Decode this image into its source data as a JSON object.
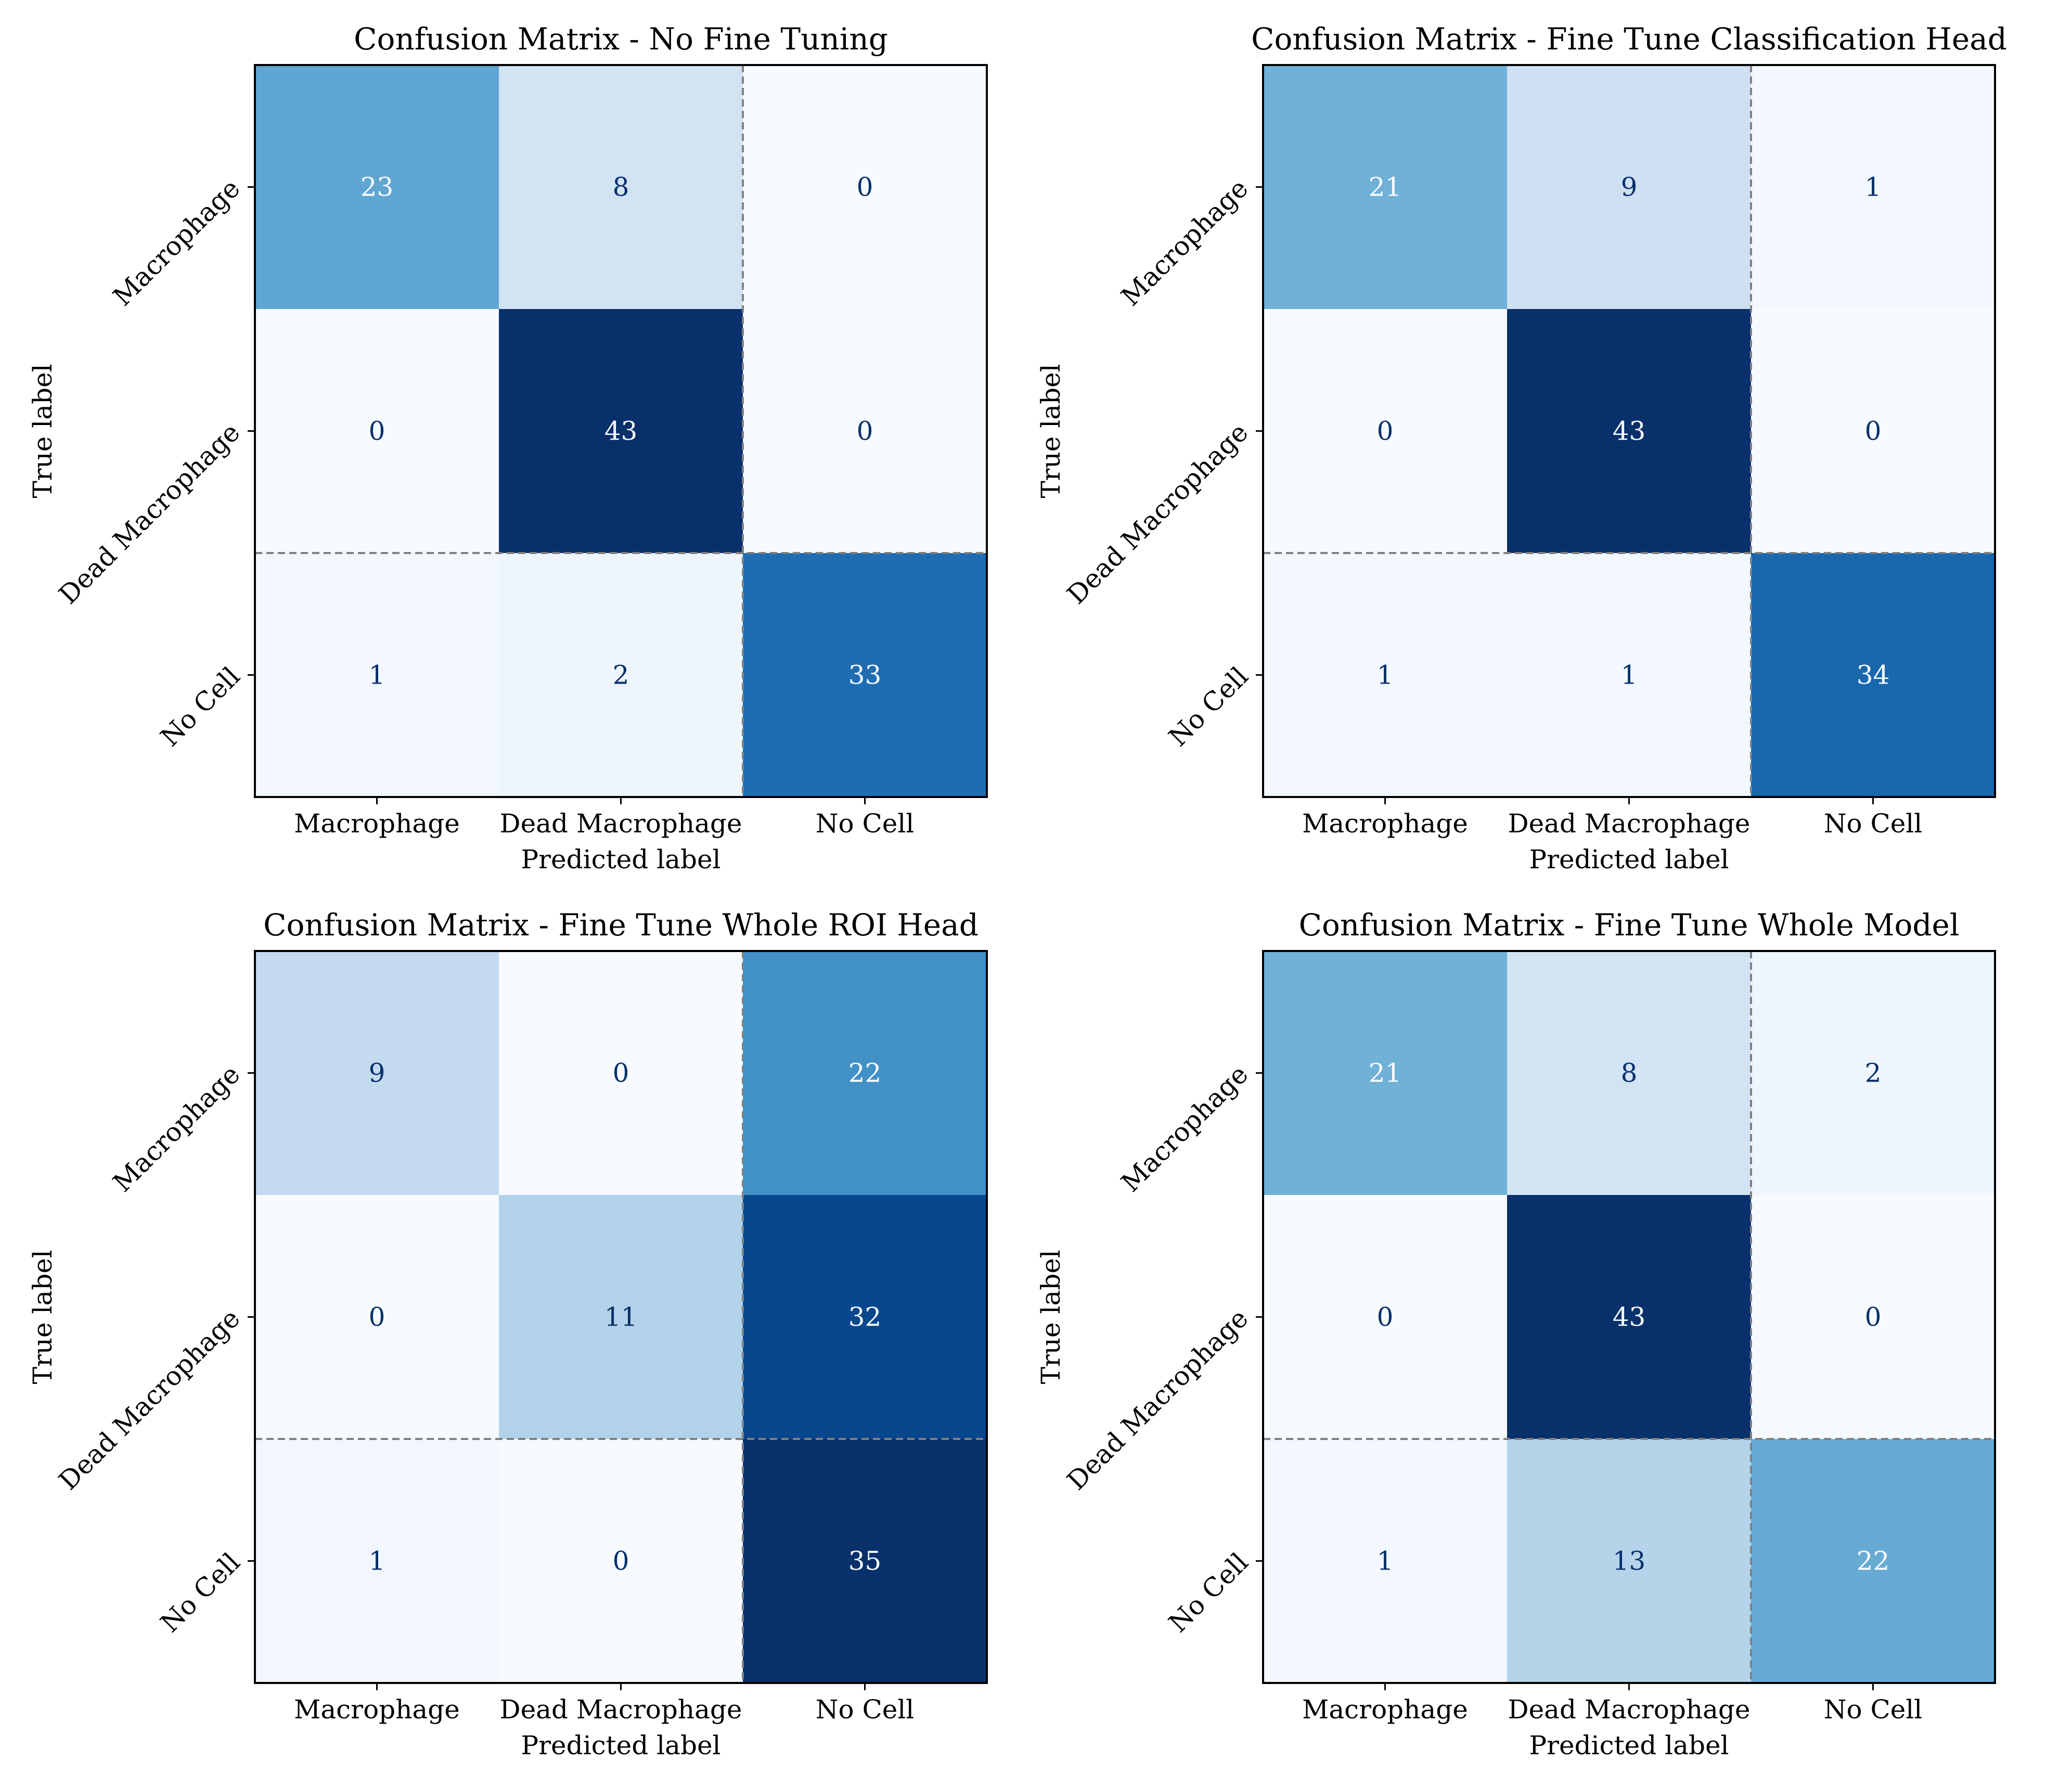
{
  "chart_data": [
    {
      "type": "heatmap",
      "title": "Confusion Matrix - No Fine Tuning",
      "xlabel": "Predicted label",
      "ylabel": "True label",
      "x_categories": [
        "Macrophage",
        "Dead Macrophage",
        "No Cell"
      ],
      "y_categories": [
        "Macrophage",
        "Dead Macrophage",
        "No Cell"
      ],
      "values": [
        [
          23,
          8,
          0
        ],
        [
          0,
          43,
          0
        ],
        [
          1,
          2,
          33
        ]
      ],
      "colormap": "Blues",
      "grid": false
    },
    {
      "type": "heatmap",
      "title": "Confusion Matrix - Fine Tune Classification Head",
      "xlabel": "Predicted label",
      "ylabel": "True label",
      "x_categories": [
        "Macrophage",
        "Dead Macrophage",
        "No Cell"
      ],
      "y_categories": [
        "Macrophage",
        "Dead Macrophage",
        "No Cell"
      ],
      "values": [
        [
          21,
          9,
          1
        ],
        [
          0,
          43,
          0
        ],
        [
          1,
          1,
          34
        ]
      ],
      "colormap": "Blues",
      "grid": false
    },
    {
      "type": "heatmap",
      "title": "Confusion Matrix - Fine Tune Whole ROI Head",
      "xlabel": "Predicted label",
      "ylabel": "True label",
      "x_categories": [
        "Macrophage",
        "Dead Macrophage",
        "No Cell"
      ],
      "y_categories": [
        "Macrophage",
        "Dead Macrophage",
        "No Cell"
      ],
      "values": [
        [
          9,
          0,
          22
        ],
        [
          0,
          11,
          32
        ],
        [
          1,
          0,
          35
        ]
      ],
      "colormap": "Blues",
      "grid": false
    },
    {
      "type": "heatmap",
      "title": "Confusion Matrix - Fine Tune Whole Model",
      "xlabel": "Predicted label",
      "ylabel": "True label",
      "x_categories": [
        "Macrophage",
        "Dead Macrophage",
        "No Cell"
      ],
      "y_categories": [
        "Macrophage",
        "Dead Macrophage",
        "No Cell"
      ],
      "values": [
        [
          21,
          8,
          2
        ],
        [
          0,
          43,
          0
        ],
        [
          1,
          13,
          22
        ]
      ],
      "colormap": "Blues",
      "grid": false
    }
  ],
  "colors": {
    "text_dark": "#08306b",
    "text_light": "#f7fbff",
    "axes": "#000000",
    "separator": "#808080",
    "blues": [
      "#f7fbff",
      "#deebf7",
      "#c6dbef",
      "#9ecae1",
      "#6baed6",
      "#4292c6",
      "#2171b5",
      "#08519c",
      "#08306b"
    ]
  }
}
